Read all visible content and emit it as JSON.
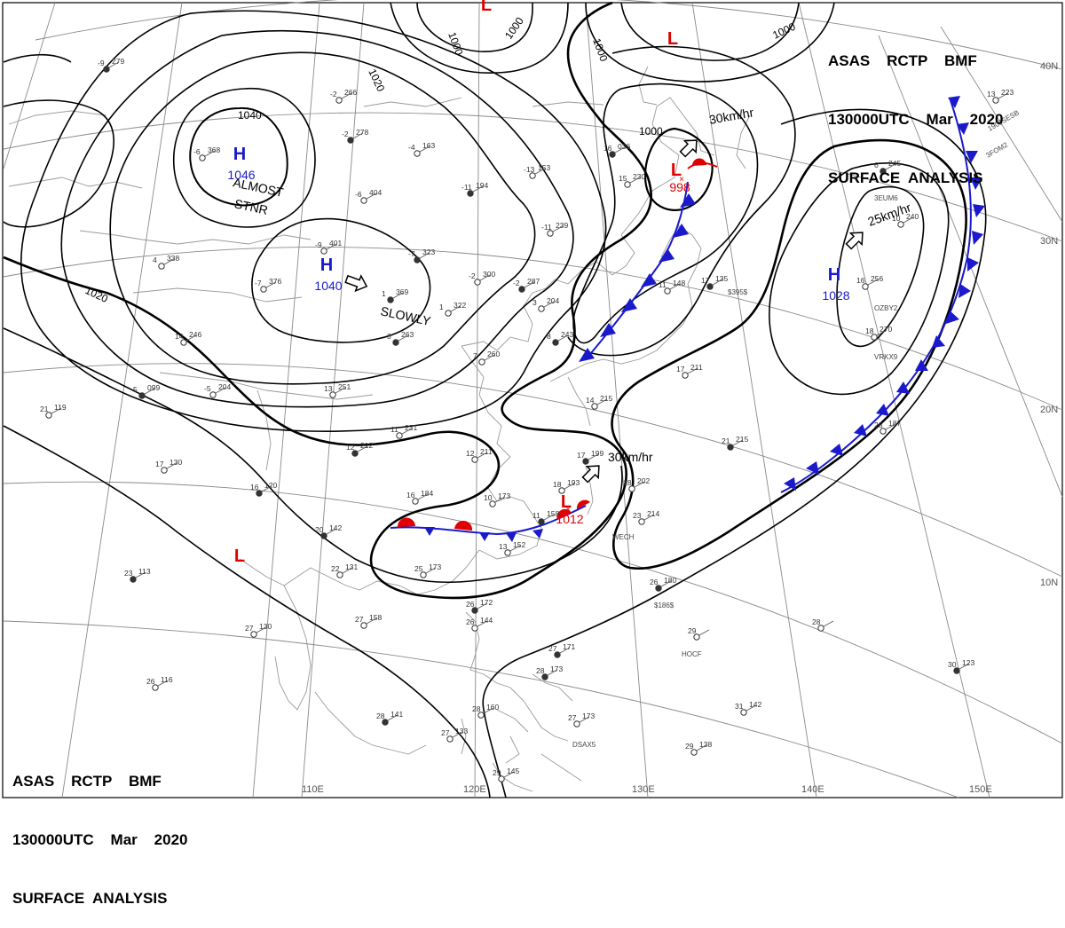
{
  "header": {
    "line1": "ASAS    RCTP    BMF",
    "line2": "130000UTC    Mar    2020",
    "line3": "SURFACE  ANALYSIS"
  },
  "colors": {
    "isobar": "#000000",
    "grid": "#8a8a8a",
    "coast": "#9a9a9a",
    "high": "#1a1acc",
    "low": "#e00000",
    "cold_front": "#1a1acc",
    "warm_front": "#e00000",
    "station": "#333333"
  },
  "grid_labels": {
    "lat": [
      "40N",
      "30N",
      "20N",
      "10N"
    ],
    "lon": [
      "110E",
      "120E",
      "130E",
      "140E",
      "150E"
    ]
  },
  "isobar_labels": [
    "1040",
    "1020",
    "1020",
    "1000",
    "1000",
    "1000",
    "1000",
    "1000"
  ],
  "pressure_centers": [
    {
      "type": "H",
      "value": "1046",
      "note": "ALMOST STNR"
    },
    {
      "type": "H",
      "value": "1040",
      "note": "SLOWLY"
    },
    {
      "type": "H",
      "value": "1028",
      "note": ""
    },
    {
      "type": "L",
      "value": "998",
      "note": ""
    },
    {
      "type": "L",
      "value": "1012",
      "note": ""
    },
    {
      "type": "L",
      "value": "",
      "note": ""
    },
    {
      "type": "L",
      "value": "",
      "note": ""
    },
    {
      "type": "L",
      "value": "",
      "note": ""
    }
  ],
  "motions": [
    {
      "text": "30km/hr"
    },
    {
      "text": "25km/hr"
    },
    {
      "text": "30km/hr"
    }
  ],
  "stations": [
    {
      "temp": "-9",
      "pres": "279"
    },
    {
      "temp": "-6",
      "pres": "368"
    },
    {
      "temp": "-2",
      "pres": "266"
    },
    {
      "temp": "-2",
      "pres": "278"
    },
    {
      "temp": "-4",
      "pres": "163"
    },
    {
      "temp": "-13",
      "pres": "153"
    },
    {
      "temp": "-11",
      "pres": "194"
    },
    {
      "temp": "-6",
      "pres": "404"
    },
    {
      "temp": "-9",
      "pres": "401"
    },
    {
      "temp": "-7",
      "pres": "323"
    },
    {
      "temp": "-11",
      "pres": "239"
    },
    {
      "temp": "-2",
      "pres": "300"
    },
    {
      "temp": "-2",
      "pres": "287"
    },
    {
      "temp": "4",
      "pres": "338"
    },
    {
      "temp": "-7",
      "pres": "376"
    },
    {
      "temp": "1",
      "pres": "369"
    },
    {
      "temp": "1",
      "pres": "322"
    },
    {
      "temp": "14",
      "pres": "246"
    },
    {
      "temp": "3",
      "pres": "263"
    },
    {
      "temp": "7",
      "pres": "260"
    },
    {
      "temp": "3",
      "pres": "204"
    },
    {
      "temp": "8",
      "pres": "243"
    },
    {
      "temp": "-5",
      "pres": "204"
    },
    {
      "temp": "13",
      "pres": "251"
    },
    {
      "temp": "5",
      "pres": "099"
    },
    {
      "temp": "21",
      "pres": "119"
    },
    {
      "temp": "11",
      "pres": "231"
    },
    {
      "temp": "12",
      "pres": "212"
    },
    {
      "temp": "12",
      "pres": "211"
    },
    {
      "temp": "17",
      "pres": "130"
    },
    {
      "temp": "16",
      "pres": "120"
    },
    {
      "temp": "16",
      "pres": "184"
    },
    {
      "temp": "10",
      "pres": "173"
    },
    {
      "temp": "11",
      "pres": "158"
    },
    {
      "temp": "13",
      "pres": "152"
    },
    {
      "temp": "18",
      "pres": "193"
    },
    {
      "temp": "20",
      "pres": "142"
    },
    {
      "temp": "22",
      "pres": "131"
    },
    {
      "temp": "25",
      "pres": "173"
    },
    {
      "temp": "23",
      "pres": "113"
    },
    {
      "temp": "27",
      "pres": "158"
    },
    {
      "temp": "27",
      "pres": "130"
    },
    {
      "temp": "26",
      "pres": "172"
    },
    {
      "temp": "26",
      "pres": "144"
    },
    {
      "temp": "26",
      "pres": "116"
    },
    {
      "temp": "28",
      "pres": "141"
    },
    {
      "temp": "27",
      "pres": "133"
    },
    {
      "temp": "28",
      "pres": "160"
    },
    {
      "temp": "27",
      "pres": "171"
    },
    {
      "temp": "27",
      "pres": "173"
    },
    {
      "temp": "29",
      "pres": "145"
    },
    {
      "temp": "28",
      "pres": "173"
    },
    {
      "temp": "29",
      "pres": "138"
    },
    {
      "temp": "31",
      "pres": "142"
    },
    {
      "temp": "26",
      "pres": "180"
    },
    {
      "temp": "23",
      "pres": "214"
    },
    {
      "temp": "18",
      "pres": "202"
    },
    {
      "temp": "17",
      "pres": "199"
    },
    {
      "temp": "14",
      "pres": "215"
    },
    {
      "temp": "17",
      "pres": "211"
    },
    {
      "temp": "21",
      "pres": "215"
    },
    {
      "temp": "26",
      "pres": "187"
    },
    {
      "temp": "18",
      "pres": "270"
    },
    {
      "temp": "6",
      "pres": "245"
    },
    {
      "temp": "10",
      "pres": "240"
    },
    {
      "temp": "13",
      "pres": "223"
    },
    {
      "temp": "30",
      "pres": "123"
    },
    {
      "temp": "28",
      "pres": ""
    },
    {
      "temp": "29",
      "pres": ""
    },
    {
      "temp": "16",
      "pres": "036"
    },
    {
      "temp": "15",
      "pres": "230"
    },
    {
      "temp": "11",
      "pres": "148"
    },
    {
      "temp": "17",
      "pres": "135"
    },
    {
      "temp": "16",
      "pres": "256"
    }
  ],
  "ship_ids": [
    "3EUM6",
    "1900SESB",
    "3FOM2",
    "OZBY2",
    "VRKX9",
    "WECH",
    "HOCF",
    "$186$",
    "$395$",
    "DSAX5"
  ]
}
